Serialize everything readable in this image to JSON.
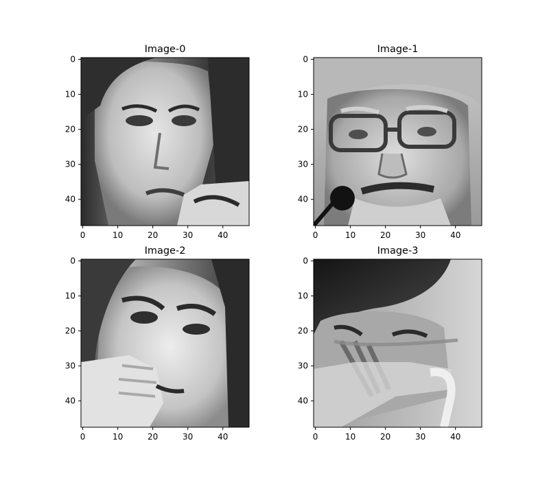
{
  "chart_data": [
    {
      "type": "image",
      "title": "Image-0",
      "content": "grayscale face crop",
      "xlim": [
        -0.5,
        47.5
      ],
      "ylim": [
        47.5,
        -0.5
      ],
      "xticks": [
        0,
        10,
        20,
        30,
        40
      ],
      "yticks": [
        0,
        10,
        20,
        30,
        40
      ],
      "xtick_labels": [
        "0",
        "10",
        "20",
        "30",
        "40"
      ],
      "ytick_labels": [
        "0",
        "10",
        "20",
        "30",
        "40"
      ]
    },
    {
      "type": "image",
      "title": "Image-1",
      "content": "grayscale face crop",
      "xlim": [
        -0.5,
        47.5
      ],
      "ylim": [
        47.5,
        -0.5
      ],
      "xticks": [
        0,
        10,
        20,
        30,
        40
      ],
      "yticks": [
        0,
        10,
        20,
        30,
        40
      ],
      "xtick_labels": [
        "0",
        "10",
        "20",
        "30",
        "40"
      ],
      "ytick_labels": [
        "0",
        "10",
        "20",
        "30",
        "40"
      ]
    },
    {
      "type": "image",
      "title": "Image-2",
      "content": "grayscale face crop",
      "xlim": [
        -0.5,
        47.5
      ],
      "ylim": [
        47.5,
        -0.5
      ],
      "xticks": [
        0,
        10,
        20,
        30,
        40
      ],
      "yticks": [
        0,
        10,
        20,
        30,
        40
      ],
      "xtick_labels": [
        "0",
        "10",
        "20",
        "30",
        "40"
      ],
      "ytick_labels": [
        "0",
        "10",
        "20",
        "30",
        "40"
      ]
    },
    {
      "type": "image",
      "title": "Image-3",
      "content": "grayscale face crop",
      "xlim": [
        -0.5,
        47.5
      ],
      "ylim": [
        47.5,
        -0.5
      ],
      "xticks": [
        0,
        10,
        20,
        30,
        40
      ],
      "yticks": [
        0,
        10,
        20,
        30,
        40
      ],
      "xtick_labels": [
        "0",
        "10",
        "20",
        "30",
        "40"
      ],
      "ytick_labels": [
        "0",
        "10",
        "20",
        "30",
        "40"
      ]
    }
  ]
}
